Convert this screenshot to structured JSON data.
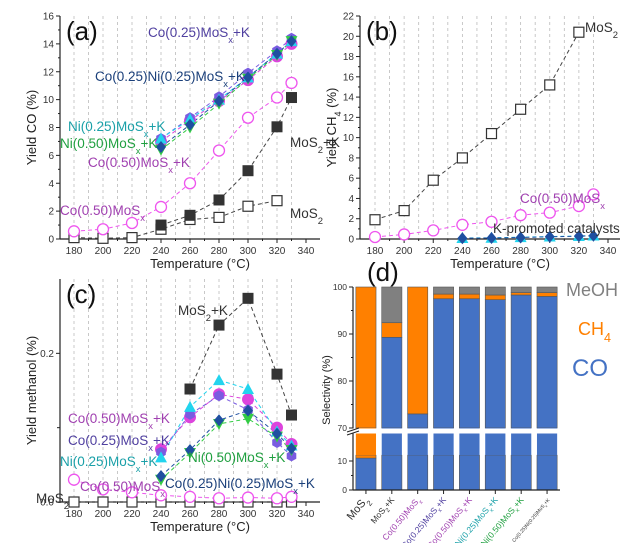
{
  "colors": {
    "mos2": "#333333",
    "mos2k": "#333333",
    "co050": "#ee55ee",
    "co050k": "#dd44dd",
    "co025k": "#7a5ce0",
    "ni025k": "#22d4ee",
    "ni050k": "#33cc44",
    "coni": "#1f4fa0",
    "sel_co": "#4472c4",
    "sel_ch4": "#ff8000",
    "sel_meoh": "#808080",
    "ann_co050": "#a040b0",
    "ann_co025": "#5040a0",
    "ann_coni": "#1a3f7a",
    "ann_ni025": "#1aa0a8",
    "ann_ni050": "#20a040"
  },
  "chart_data": [
    {
      "id": "a",
      "type": "line",
      "panel_label": "(a)",
      "xlabel": "Temperature (°C)",
      "ylabel": "Yield CO (%)",
      "xlim": [
        170,
        340
      ],
      "ylim": [
        0,
        16
      ],
      "xticks": [
        180,
        200,
        220,
        240,
        260,
        280,
        300,
        320,
        340
      ],
      "yticks": [
        0,
        2,
        4,
        6,
        8,
        10,
        12,
        14,
        16
      ],
      "grid": "vertical-dashed",
      "series": [
        {
          "name": "MoS2",
          "marker": "open-square",
          "color_key": "mos2",
          "x": [
            180,
            200,
            220,
            240,
            260,
            280,
            300,
            320
          ],
          "y": [
            0.1,
            0.05,
            0.1,
            0.7,
            1.4,
            1.55,
            2.35,
            2.75
          ]
        },
        {
          "name": "MoS2+K",
          "marker": "filled-square",
          "color_key": "mos2k",
          "x": [
            240,
            260,
            280,
            300,
            320,
            330
          ],
          "y": [
            1.0,
            1.7,
            2.8,
            4.9,
            8.05,
            10.15
          ]
        },
        {
          "name": "Co(0.50)MoSx",
          "marker": "open-circle",
          "color_key": "co050",
          "x": [
            180,
            200,
            220,
            240,
            260,
            280,
            300,
            320,
            330
          ],
          "y": [
            0.55,
            0.7,
            1.15,
            2.3,
            4.0,
            6.35,
            8.7,
            10.15,
            11.2
          ]
        },
        {
          "name": "Co(0.50)MoSx+K",
          "marker": "filled-circle",
          "color_key": "co050k",
          "x": [
            240,
            260,
            280,
            300,
            320,
            330
          ],
          "y": [
            7.0,
            8.5,
            9.9,
            11.4,
            13.1,
            14.0
          ]
        },
        {
          "name": "Co(0.25)MoSx+K",
          "marker": "filled-hexagon",
          "color_key": "co025k",
          "x": [
            240,
            260,
            280,
            300,
            320,
            330
          ],
          "y": [
            7.2,
            8.7,
            10.2,
            11.9,
            13.5,
            14.4
          ]
        },
        {
          "name": "Ni(0.25)MoSx+K",
          "marker": "filled-triangle",
          "color_key": "ni025k",
          "x": [
            240,
            260,
            280,
            300,
            320,
            330
          ],
          "y": [
            7.2,
            8.6,
            10.0,
            11.6,
            13.3,
            14.2
          ]
        },
        {
          "name": "Ni(0.50)MoSx+K",
          "marker": "filled-down-triangle",
          "color_key": "ni050k",
          "x": [
            240,
            260,
            280,
            300,
            320,
            330
          ],
          "y": [
            6.4,
            8.0,
            9.7,
            11.5,
            13.2,
            14.2
          ]
        },
        {
          "name": "Co(0.25)Ni(0.25)MoSx+K",
          "marker": "filled-diamond",
          "color_key": "coni",
          "x": [
            240,
            260,
            280,
            300,
            320,
            330
          ],
          "y": [
            6.6,
            8.2,
            9.9,
            11.6,
            13.3,
            14.2
          ]
        }
      ],
      "annotations": [
        {
          "text": "Co(0.25)MoS",
          "sub": "x",
          "tail": "+K",
          "color_key": "ann_co025"
        },
        {
          "text": "Co(0.25)Ni(0.25)MoS",
          "sub": "x",
          "tail": "+K",
          "color_key": "ann_coni"
        },
        {
          "text": "Ni(0.25)MoS",
          "sub": "x",
          "tail": "+K",
          "color_key": "ann_ni025"
        },
        {
          "text": "Ni(0.50)MoS",
          "sub": "x",
          "tail": "+K",
          "color_key": "ann_ni050"
        },
        {
          "text": "Co(0.50)MoS",
          "sub": "x",
          "tail": "+K",
          "color_key": "ann_co050"
        },
        {
          "text": "MoS",
          "sub": "2",
          "tail": "+K",
          "color_key": "mos2"
        },
        {
          "text": "Co(0.50)MoS",
          "sub": "x",
          "tail": "",
          "color_key": "ann_co050"
        },
        {
          "text": "MoS",
          "sub": "2",
          "tail": "",
          "color_key": "mos2"
        }
      ]
    },
    {
      "id": "b",
      "type": "line",
      "panel_label": "(b)",
      "xlabel": "Temperature (°C)",
      "ylabel": "Yield CH",
      "ylabel_sub": "4",
      "ylabel_tail": " (%)",
      "xlim": [
        170,
        340
      ],
      "ylim": [
        0,
        22
      ],
      "xticks": [
        180,
        200,
        220,
        240,
        260,
        280,
        300,
        320,
        340
      ],
      "yticks": [
        0,
        2,
        4,
        6,
        8,
        10,
        12,
        14,
        16,
        18,
        20,
        22
      ],
      "grid": "vertical-dashed",
      "series": [
        {
          "name": "MoS2",
          "marker": "open-square",
          "color_key": "mos2",
          "x": [
            180,
            200,
            220,
            240,
            260,
            280,
            300,
            320
          ],
          "y": [
            1.9,
            2.8,
            5.8,
            8.0,
            10.4,
            12.8,
            15.2,
            20.4
          ]
        },
        {
          "name": "Co(0.50)MoSx",
          "marker": "open-circle",
          "color_key": "co050",
          "x": [
            180,
            200,
            220,
            240,
            260,
            280,
            300,
            320,
            330
          ],
          "y": [
            0.2,
            0.45,
            0.85,
            1.4,
            1.7,
            2.35,
            2.6,
            3.25,
            4.4
          ]
        },
        {
          "name": "Ni(0.25)MoSx+K",
          "marker": "filled-triangle",
          "color_key": "ni025k",
          "x": [
            240,
            260,
            280,
            300,
            320,
            330
          ],
          "y": [
            0.1,
            0.12,
            0.18,
            0.25,
            0.3,
            0.35
          ]
        },
        {
          "name": "Co(0.25)Ni(0.25)MoSx+K",
          "marker": "filled-diamond",
          "color_key": "coni",
          "x": [
            240,
            260,
            280,
            300,
            320,
            330
          ],
          "y": [
            0.08,
            0.1,
            0.15,
            0.22,
            0.28,
            0.32
          ]
        }
      ],
      "annotations": [
        {
          "text": "MoS",
          "sub": "2",
          "tail": "",
          "color_key": "mos2"
        },
        {
          "text": "Co(0.50)MoS",
          "sub": "x",
          "tail": "",
          "color_key": "ann_co050"
        },
        {
          "text": "K-promoted catalysts",
          "sub": "",
          "tail": "",
          "color_key": "mos2"
        }
      ]
    },
    {
      "id": "c",
      "type": "line",
      "panel_label": "(c)",
      "xlabel": "Temperature (°C)",
      "ylabel": "Yield methanol (%)",
      "xlim": [
        170,
        340
      ],
      "ylim": [
        0,
        0.3
      ],
      "xticks": [
        180,
        200,
        220,
        240,
        260,
        280,
        300,
        320,
        340
      ],
      "yticks": [
        0.0,
        0.2
      ],
      "yticklabels": [
        "0.0",
        "0.2"
      ],
      "grid": "vertical-dashed",
      "series": [
        {
          "name": "MoS2",
          "marker": "open-square",
          "color_key": "mos2",
          "x": [
            180,
            200,
            220,
            240,
            260,
            280,
            300,
            320,
            330
          ],
          "y": [
            0,
            0,
            0,
            0,
            0,
            0,
            0,
            0,
            0
          ]
        },
        {
          "name": "MoS2+K",
          "marker": "filled-square",
          "color_key": "mos2k",
          "x": [
            260,
            280,
            300,
            320,
            330
          ],
          "y": [
            0.152,
            0.238,
            0.274,
            0.172,
            0.117
          ]
        },
        {
          "name": "Co(0.50)MoSx",
          "marker": "open-circle",
          "color_key": "co050",
          "x": [
            180,
            200,
            220,
            240,
            260,
            280,
            300,
            320,
            330
          ],
          "y": [
            0.03,
            0.017,
            0.013,
            0.009,
            0.007,
            0.005,
            0.006,
            0.005,
            0.007
          ]
        },
        {
          "name": "Co(0.50)MoSx+K",
          "marker": "filled-circle",
          "color_key": "co050k",
          "x": [
            240,
            260,
            280,
            300,
            320,
            330
          ],
          "y": [
            0.071,
            0.114,
            0.145,
            0.138,
            0.1,
            0.078
          ]
        },
        {
          "name": "Co(0.25)MoSx+K",
          "marker": "filled-hexagon",
          "color_key": "co025k",
          "x": [
            240,
            260,
            280,
            300,
            320,
            330
          ],
          "y": [
            0.067,
            0.118,
            0.143,
            0.124,
            0.08,
            0.062
          ]
        },
        {
          "name": "Ni(0.25)MoSx+K",
          "marker": "filled-triangle",
          "color_key": "ni025k",
          "x": [
            240,
            260,
            280,
            300,
            320,
            330
          ],
          "y": [
            0.06,
            0.128,
            0.164,
            0.152,
            0.095,
            0.076
          ]
        },
        {
          "name": "Ni(0.50)MoSx+K",
          "marker": "filled-down-triangle",
          "color_key": "ni050k",
          "x": [
            240,
            260,
            280,
            300,
            320,
            330
          ],
          "y": [
            0.03,
            0.066,
            0.105,
            0.112,
            0.088,
            0.07
          ]
        },
        {
          "name": "Co(0.25)Ni(0.25)MoSx+K",
          "marker": "filled-diamond",
          "color_key": "coni",
          "x": [
            240,
            260,
            280,
            300,
            320,
            330
          ],
          "y": [
            0.035,
            0.07,
            0.11,
            0.123,
            0.092,
            0.072
          ]
        }
      ],
      "annotations": [
        {
          "text": "MoS",
          "sub": "2",
          "tail": "+K",
          "color_key": "mos2"
        },
        {
          "text": "Co(0.50)MoS",
          "sub": "x",
          "tail": "+K",
          "color_key": "ann_co050"
        },
        {
          "text": "Co(0.25)MoS",
          "sub": "x",
          "tail": "+K",
          "color_key": "ann_co025"
        },
        {
          "text": "Ni(0.25)MoS",
          "sub": "x",
          "tail": "+K",
          "color_key": "ann_ni025"
        },
        {
          "text": "Co(0.50)MoS",
          "sub": "x",
          "tail": "",
          "color_key": "ann_co050"
        },
        {
          "text": "MoS",
          "sub": "2",
          "tail": "",
          "color_key": "mos2"
        },
        {
          "text": "Ni(0.50)MoS",
          "sub": "x",
          "tail": "+K",
          "color_key": "ann_ni050"
        },
        {
          "text": "Co(0.25)Ni(0.25)MoS",
          "sub": "x",
          "tail": "+K",
          "color_key": "ann_coni"
        }
      ]
    },
    {
      "id": "d",
      "type": "bar",
      "stacked": true,
      "panel_label": "(d)",
      "ylabel": "Selectivity (%)",
      "ylim": [
        0,
        100
      ],
      "axis_break": [
        12,
        70
      ],
      "yticks": [
        0,
        10,
        70,
        80,
        90,
        100
      ],
      "categories": [
        "MoS2",
        "MoS2+K",
        "Co(0.50)MoSx",
        "Co(0.25)MoSx+K",
        "Co(0.50)MoSx+K",
        "Ni(0.25)MoSx+K",
        "Ni(0.50)MoSx+K",
        "Co(0.25)Ni(0.25)MoSx+K"
      ],
      "category_labels": [
        {
          "text": "MoS",
          "sub": "2",
          "tail": "",
          "color_key": "mos2"
        },
        {
          "text": "MoS",
          "sub": "2",
          "tail": "+K",
          "color_key": "mos2"
        },
        {
          "text": "Co(0.50)MoS",
          "sub": "x",
          "tail": "",
          "color_key": "ann_co050"
        },
        {
          "text": "Co(0.25)MoS",
          "sub": "x",
          "tail": "+K",
          "color_key": "ann_co025"
        },
        {
          "text": "Co(0.50)MoS",
          "sub": "x",
          "tail": "+K",
          "color_key": "ann_co050"
        },
        {
          "text": "Ni(0.25)MoS",
          "sub": "x",
          "tail": "+K",
          "color_key": "ann_ni025"
        },
        {
          "text": "Ni(0.50)MoS",
          "sub": "x",
          "tail": "+K",
          "color_key": "ann_ni050"
        },
        {
          "text": "Co(0.25)Ni(0.25)MoS",
          "sub": "x",
          "tail": "+K",
          "color_key": "mos2"
        }
      ],
      "series": [
        {
          "name": "CO",
          "color_key": "sel_co",
          "values": [
            11.0,
            89.3,
            73.0,
            97.5,
            97.5,
            97.3,
            98.3,
            98.0
          ]
        },
        {
          "name": "CH4",
          "color_key": "sel_ch4",
          "values": [
            89.0,
            3.1,
            27.0,
            1.0,
            1.0,
            1.0,
            0.5,
            0.8
          ]
        },
        {
          "name": "MeOH",
          "color_key": "sel_meoh",
          "values": [
            0.0,
            7.6,
            0.0,
            1.5,
            1.5,
            1.7,
            1.2,
            1.2
          ]
        }
      ],
      "legend": [
        {
          "text": "MeOH",
          "sub": "",
          "color_key": "sel_meoh"
        },
        {
          "text": "CH",
          "sub": "4",
          "color_key": "sel_ch4"
        },
        {
          "text": "CO",
          "sub": "",
          "color_key": "sel_co"
        }
      ],
      "legend_position": "right"
    }
  ]
}
